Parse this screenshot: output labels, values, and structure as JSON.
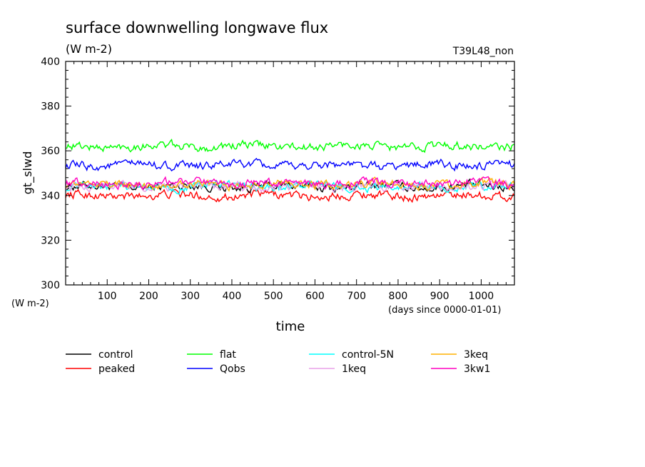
{
  "chart_data": {
    "type": "line",
    "title": "surface downwelling longwave flux",
    "subtitle": "(W m-2)",
    "run_label": "T39L48_non",
    "ylabel": "gt_slwd",
    "y_unit": "(W m-2)",
    "xlabel": "time",
    "x_unit": "(days since 0000-01-01)",
    "xlim": [
      0,
      1080
    ],
    "ylim": [
      300,
      400
    ],
    "x_ticks": [
      100,
      200,
      300,
      400,
      500,
      600,
      700,
      800,
      900,
      1000
    ],
    "y_ticks": [
      300,
      320,
      340,
      360,
      380,
      400
    ],
    "x_minor_step": 20,
    "y_minor_step": 4,
    "grid": false,
    "legend_position": "bottom",
    "series": [
      {
        "name": "control",
        "color": "#000000",
        "mean": 344.0,
        "amplitude": 1.5
      },
      {
        "name": "peaked",
        "color": "#ff0000",
        "mean": 340.0,
        "amplitude": 1.5
      },
      {
        "name": "flat",
        "color": "#00ff00",
        "mean": 362.0,
        "amplitude": 1.5
      },
      {
        "name": "Qobs",
        "color": "#0000ff",
        "mean": 353.5,
        "amplitude": 1.5
      },
      {
        "name": "control-5N",
        "color": "#00ffff",
        "mean": 344.0,
        "amplitude": 1.5
      },
      {
        "name": "1keq",
        "color": "#e8a0e8",
        "mean": 344.0,
        "amplitude": 1.5
      },
      {
        "name": "3keq",
        "color": "#ffb000",
        "mean": 345.0,
        "amplitude": 1.5
      },
      {
        "name": "3kw1",
        "color": "#ff00c0",
        "mean": 345.5,
        "amplitude": 1.5
      }
    ]
  }
}
